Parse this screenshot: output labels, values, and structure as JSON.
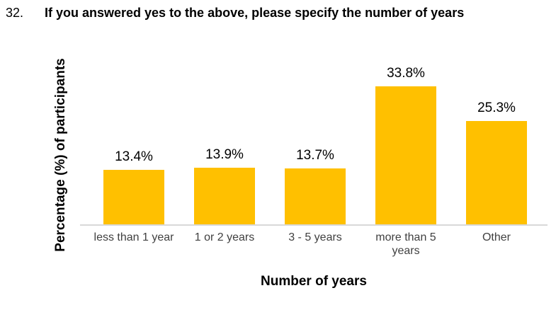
{
  "header": {
    "number": "32.",
    "title": "If you answered yes to the above, please specify the number of years"
  },
  "chart_data": {
    "type": "bar",
    "categories": [
      "less than 1 year",
      "1 or 2 years",
      "3 - 5 years",
      "more than 5 years",
      "Other"
    ],
    "values": [
      13.4,
      13.9,
      13.7,
      33.8,
      25.3
    ],
    "value_labels": [
      "13.4%",
      "13.9%",
      "13.7%",
      "33.8%",
      "25.3%"
    ],
    "xlabel": "Number of years",
    "ylabel": "Percentage (%) of participants",
    "ylim": [
      0,
      40
    ],
    "grid": false,
    "legend": "none",
    "bar_color": "#FFC000",
    "axis_line_color": "#D9D9D9",
    "value_label_color": "#000000",
    "tick_label_color": "#404040"
  }
}
